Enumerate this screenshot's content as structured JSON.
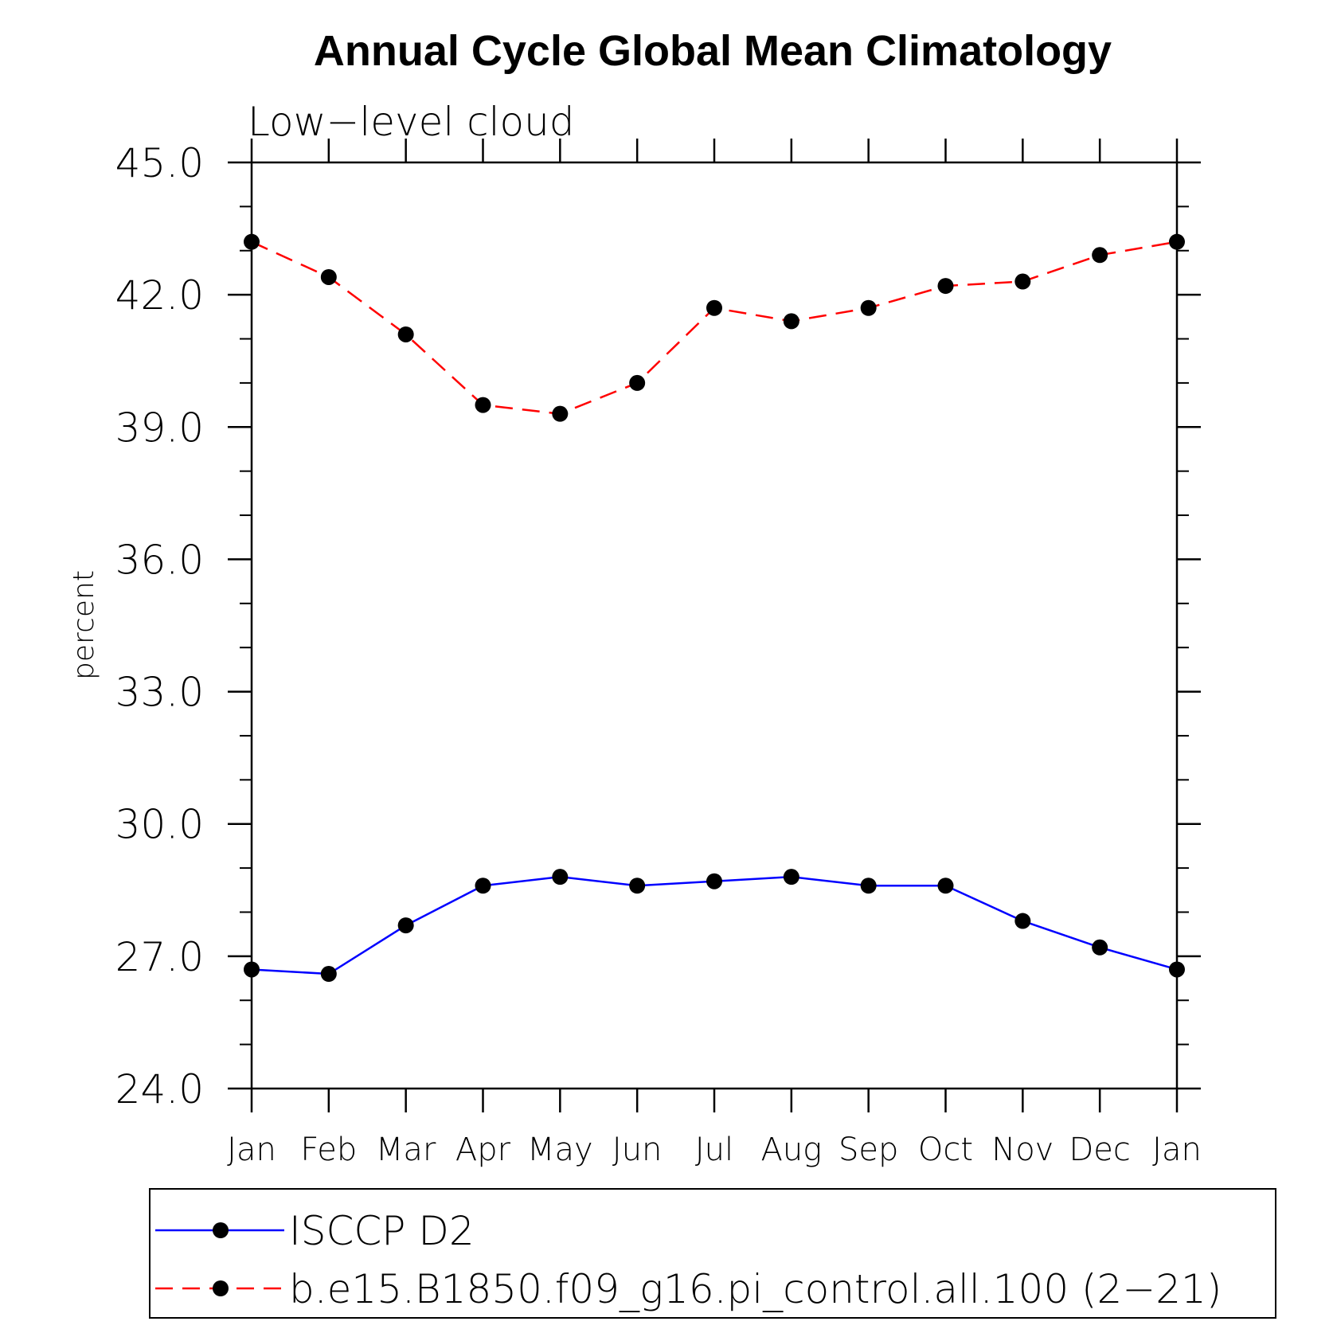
{
  "chart_data": {
    "type": "line",
    "title": "Annual Cycle Global Mean Climatology",
    "subtitle": "Low−level cloud",
    "ylabel": "percent",
    "xlabel": "",
    "categories": [
      "Jan",
      "Feb",
      "Mar",
      "Apr",
      "May",
      "Jun",
      "Jul",
      "Aug",
      "Sep",
      "Oct",
      "Nov",
      "Dec",
      "Jan"
    ],
    "ylim": [
      24.0,
      45.0
    ],
    "yticks": [
      "24.0",
      "27.0",
      "30.0",
      "33.0",
      "36.0",
      "39.0",
      "42.0",
      "45.0"
    ],
    "series": [
      {
        "name": "ISCCP D2",
        "color": "#0000ff",
        "dash": "solid",
        "values": [
          26.7,
          26.6,
          27.7,
          28.6,
          28.8,
          28.6,
          28.7,
          28.8,
          28.6,
          28.6,
          27.8,
          27.2,
          26.7
        ]
      },
      {
        "name": "b.e15.B1850.f09_g16.pi_control.all.100 (2−21)",
        "color": "#ff0000",
        "dash": "dashed",
        "values": [
          43.2,
          42.4,
          41.1,
          39.5,
          39.3,
          40.0,
          41.7,
          41.4,
          41.7,
          42.2,
          42.3,
          42.9,
          43.2
        ]
      }
    ],
    "marker": "filled-circle",
    "marker_color": "#000000",
    "grid": false,
    "legend_position": "bottom"
  }
}
